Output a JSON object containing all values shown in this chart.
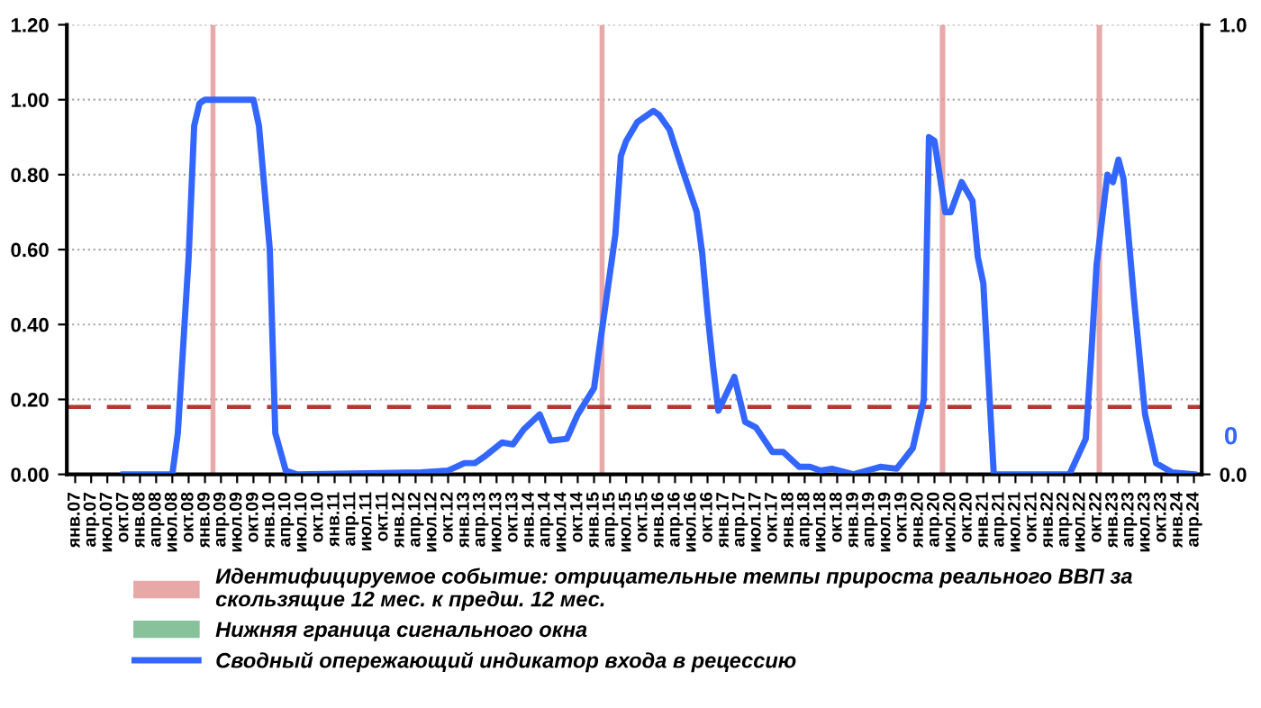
{
  "chart_data": {
    "type": "line",
    "xlim": [
      "2006-11-15",
      "2024-05-15"
    ],
    "ylim": [
      0,
      1.2
    ],
    "yticks": [
      {
        "value": 0,
        "label": "0.00"
      },
      {
        "value": 0.2,
        "label": "0.20"
      },
      {
        "value": 0.4,
        "label": "0.40"
      },
      {
        "value": 0.6,
        "label": "0.60"
      },
      {
        "value": 0.8,
        "label": "0.80"
      },
      {
        "value": 1.0,
        "label": "1.00"
      },
      {
        "value": 1.2,
        "label": "1.20"
      }
    ],
    "y2lim": [
      0,
      1
    ],
    "y2ticks": [
      {
        "value": 0,
        "label": "0.0"
      },
      {
        "value": 1,
        "label": "1.0"
      }
    ],
    "xticks": [
      {
        "value": "2007-01",
        "label": "янв.07"
      },
      {
        "value": "2007-04",
        "label": "апр.07"
      },
      {
        "value": "2007-07",
        "label": "июл.07"
      },
      {
        "value": "2007-10",
        "label": "окт.07"
      },
      {
        "value": "2008-01",
        "label": "янв.08"
      },
      {
        "value": "2008-04",
        "label": "апр.08"
      },
      {
        "value": "2008-07",
        "label": "июл.08"
      },
      {
        "value": "2008-10",
        "label": "окт.08"
      },
      {
        "value": "2009-01",
        "label": "янв.09"
      },
      {
        "value": "2009-04",
        "label": "апр.09"
      },
      {
        "value": "2009-07",
        "label": "июл.09"
      },
      {
        "value": "2009-10",
        "label": "окт.09"
      },
      {
        "value": "2010-01",
        "label": "янв.10"
      },
      {
        "value": "2010-04",
        "label": "апр.10"
      },
      {
        "value": "2010-07",
        "label": "июл.10"
      },
      {
        "value": "2010-10",
        "label": "окт.10"
      },
      {
        "value": "2011-01",
        "label": "янв.11"
      },
      {
        "value": "2011-04",
        "label": "апр.11"
      },
      {
        "value": "2011-07",
        "label": "июл.11"
      },
      {
        "value": "2011-10",
        "label": "окт.11"
      },
      {
        "value": "2012-01",
        "label": "янв.12"
      },
      {
        "value": "2012-04",
        "label": "апр.12"
      },
      {
        "value": "2012-07",
        "label": "июл.12"
      },
      {
        "value": "2012-10",
        "label": "окт.12"
      },
      {
        "value": "2013-01",
        "label": "янв.13"
      },
      {
        "value": "2013-04",
        "label": "апр.13"
      },
      {
        "value": "2013-07",
        "label": "июл.13"
      },
      {
        "value": "2013-10",
        "label": "окт.13"
      },
      {
        "value": "2014-01",
        "label": "янв.14"
      },
      {
        "value": "2014-04",
        "label": "апр.14"
      },
      {
        "value": "2014-07",
        "label": "июл.14"
      },
      {
        "value": "2014-10",
        "label": "окт.14"
      },
      {
        "value": "2015-01",
        "label": "янв.15"
      },
      {
        "value": "2015-04",
        "label": "апр.15"
      },
      {
        "value": "2015-07",
        "label": "июл.15"
      },
      {
        "value": "2015-10",
        "label": "окт.15"
      },
      {
        "value": "2016-01",
        "label": "янв.16"
      },
      {
        "value": "2016-04",
        "label": "апр.16"
      },
      {
        "value": "2016-07",
        "label": "июл.16"
      },
      {
        "value": "2016-10",
        "label": "окт.16"
      },
      {
        "value": "2017-01",
        "label": "янв.17"
      },
      {
        "value": "2017-04",
        "label": "апр.17"
      },
      {
        "value": "2017-07",
        "label": "июл.17"
      },
      {
        "value": "2017-10",
        "label": "окт.17"
      },
      {
        "value": "2018-01",
        "label": "янв.18"
      },
      {
        "value": "2018-04",
        "label": "апр.18"
      },
      {
        "value": "2018-07",
        "label": "июл.18"
      },
      {
        "value": "2018-10",
        "label": "окт.18"
      },
      {
        "value": "2019-01",
        "label": "янв.19"
      },
      {
        "value": "2019-04",
        "label": "апр.19"
      },
      {
        "value": "2019-07",
        "label": "июл.19"
      },
      {
        "value": "2019-10",
        "label": "окт.19"
      },
      {
        "value": "2020-01",
        "label": "янв.20"
      },
      {
        "value": "2020-04",
        "label": "апр.20"
      },
      {
        "value": "2020-07",
        "label": "июл.20"
      },
      {
        "value": "2020-10",
        "label": "окт.20"
      },
      {
        "value": "2021-01",
        "label": "янв.21"
      },
      {
        "value": "2021-04",
        "label": "апр.21"
      },
      {
        "value": "2021-07",
        "label": "июл.21"
      },
      {
        "value": "2021-10",
        "label": "окт.21"
      },
      {
        "value": "2022-01",
        "label": "янв.22"
      },
      {
        "value": "2022-04",
        "label": "апр.22"
      },
      {
        "value": "2022-07",
        "label": "июл.22"
      },
      {
        "value": "2022-10",
        "label": "окт.22"
      },
      {
        "value": "2023-01",
        "label": "янв.23"
      },
      {
        "value": "2023-04",
        "label": "апр.23"
      },
      {
        "value": "2023-07",
        "label": "июл.23"
      },
      {
        "value": "2023-10",
        "label": "окт.23"
      },
      {
        "value": "2024-01",
        "label": "янв.24"
      },
      {
        "value": "2024-04",
        "label": "апр.24"
      }
    ],
    "grid": "y",
    "legend": "bottom",
    "marker": "none",
    "line_style": "solid",
    "bands": [
      {
        "axis": "x",
        "from": "2009-02",
        "to": "2009-03",
        "label": "Идентифицируемое событие: отрицательные темпы прироста реального ВВП за\nскользящие 12 мес. к предш. 12 мес.",
        "color": "#e39a9a"
      },
      {
        "axis": "x",
        "from": "2015-02",
        "to": "2015-03",
        "label": null,
        "color": "#e39a9a"
      },
      {
        "axis": "x",
        "from": "2020-05",
        "to": "2020-06",
        "label": null,
        "color": "#e39a9a"
      },
      {
        "axis": "x",
        "from": "2022-10",
        "to": "2022-11",
        "label": null,
        "color": "#e39a9a"
      }
    ],
    "ref_lines": [
      {
        "axis": "y",
        "value": 0.18,
        "label": null,
        "color": "#b03a32",
        "line_style": "dashed"
      }
    ],
    "annotations": [
      "Нижняя граница сигнального окна",
      {
        "text": "0",
        "x": "2024-04",
        "y": 0.0
      }
    ],
    "series": [
      {
        "name": "Сводный опережающий индикатор входа в рецессию",
        "color": "#3366ff",
        "x": [
          "2007-10",
          "2008-07",
          "2008-08",
          "2008-10",
          "2008-11",
          "2008-12",
          "2009-01",
          "2009-10",
          "2009-11",
          "2010-01",
          "2010-02",
          "2010-04",
          "2010-06",
          "2012-05",
          "2012-10",
          "2013-01",
          "2013-03",
          "2013-05",
          "2013-08",
          "2013-10",
          "2013-12",
          "2014-03",
          "2014-05",
          "2014-08",
          "2014-10",
          "2015-01",
          "2015-02",
          "2015-05",
          "2015-06",
          "2015-07",
          "2015-09",
          "2015-12",
          "2016-01",
          "2016-03",
          "2016-05",
          "2016-08",
          "2016-09",
          "2016-10",
          "2016-11",
          "2016-12",
          "2017-03",
          "2017-05",
          "2017-07",
          "2017-10",
          "2017-12",
          "2018-03",
          "2018-05",
          "2018-07",
          "2018-09",
          "2019-01",
          "2019-06",
          "2019-09",
          "2019-12",
          "2020-02",
          "2020-03",
          "2020-04",
          "2020-06",
          "2020-07",
          "2020-09",
          "2020-11",
          "2020-12",
          "2021-01",
          "2021-03",
          "2022-05",
          "2022-08",
          "2022-09",
          "2022-10",
          "2022-12",
          "2023-01",
          "2023-02",
          "2023-03",
          "2023-05",
          "2023-07",
          "2023-09",
          "2023-12",
          "2024-04"
        ],
        "values": [
          0,
          0,
          0.11,
          0.58,
          0.93,
          0.99,
          1.0,
          1.0,
          0.93,
          0.6,
          0.11,
          0.01,
          0,
          0.005,
          0.01,
          0.03,
          0.03,
          0.05,
          0.085,
          0.08,
          0.12,
          0.16,
          0.09,
          0.095,
          0.16,
          0.23,
          0.34,
          0.64,
          0.85,
          0.89,
          0.94,
          0.97,
          0.96,
          0.92,
          0.83,
          0.7,
          0.59,
          0.43,
          0.29,
          0.17,
          0.26,
          0.14,
          0.125,
          0.06,
          0.06,
          0.02,
          0.02,
          0.01,
          0.015,
          0,
          0.02,
          0.015,
          0.07,
          0.2,
          0.9,
          0.89,
          0.7,
          0.7,
          0.78,
          0.73,
          0.58,
          0.51,
          0,
          0,
          0.095,
          0.32,
          0.56,
          0.8,
          0.78,
          0.84,
          0.79,
          0.46,
          0.16,
          0.03,
          0.005,
          0
        ]
      }
    ]
  }
}
